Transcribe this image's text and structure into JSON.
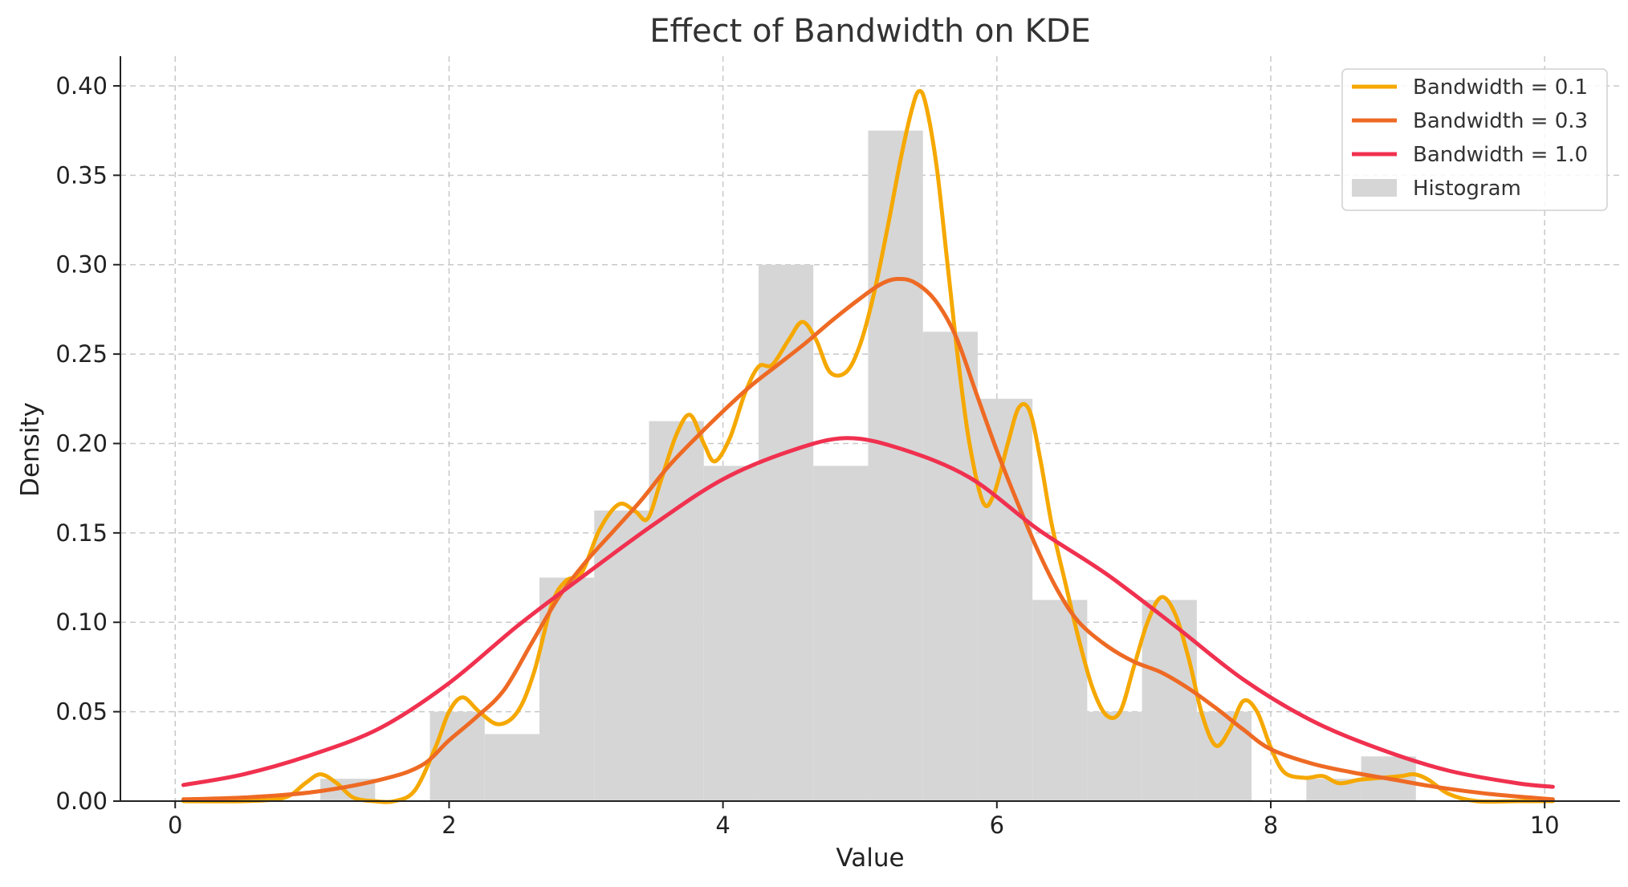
{
  "chart_data": {
    "type": "area",
    "title": "Effect of Bandwidth on KDE",
    "xlabel": "Value",
    "ylabel": "Density",
    "xlim": [
      -0.4,
      10.55
    ],
    "ylim": [
      0,
      0.4166
    ],
    "grid": true,
    "legend_position": "top-right",
    "x_ticks": [
      {
        "value": 0,
        "label": "0"
      },
      {
        "value": 2,
        "label": "2"
      },
      {
        "value": 4,
        "label": "4"
      },
      {
        "value": 6,
        "label": "6"
      },
      {
        "value": 8,
        "label": "8"
      },
      {
        "value": 10,
        "label": "10"
      }
    ],
    "y_ticks": [
      {
        "value": 0,
        "label": "0.00"
      },
      {
        "value": 0.05,
        "label": "0.05"
      },
      {
        "value": 0.1,
        "label": "0.10"
      },
      {
        "value": 0.15,
        "label": "0.15"
      },
      {
        "value": 0.2,
        "label": "0.20"
      },
      {
        "value": 0.25,
        "label": "0.25"
      },
      {
        "value": 0.3,
        "label": "0.30"
      },
      {
        "value": 0.35,
        "label": "0.35"
      },
      {
        "value": 0.4,
        "label": "0.40"
      }
    ],
    "histogram": {
      "name": "Histogram",
      "color": "#d6d6d6",
      "bins": [
        {
          "x0": 1.06,
          "x1": 1.46,
          "density": 0.0125
        },
        {
          "x0": 1.46,
          "x1": 1.86,
          "density": 0.0
        },
        {
          "x0": 1.86,
          "x1": 2.26,
          "density": 0.05
        },
        {
          "x0": 2.26,
          "x1": 2.66,
          "density": 0.0375
        },
        {
          "x0": 2.66,
          "x1": 3.06,
          "density": 0.125
        },
        {
          "x0": 3.06,
          "x1": 3.46,
          "density": 0.1625
        },
        {
          "x0": 3.46,
          "x1": 3.86,
          "density": 0.2125
        },
        {
          "x0": 3.86,
          "x1": 4.26,
          "density": 0.1875
        },
        {
          "x0": 4.26,
          "x1": 4.66,
          "density": 0.3
        },
        {
          "x0": 4.66,
          "x1": 5.06,
          "density": 0.1875
        },
        {
          "x0": 5.06,
          "x1": 5.46,
          "density": 0.375
        },
        {
          "x0": 5.46,
          "x1": 5.86,
          "density": 0.2625
        },
        {
          "x0": 5.86,
          "x1": 6.26,
          "density": 0.225
        },
        {
          "x0": 6.26,
          "x1": 6.66,
          "density": 0.1125
        },
        {
          "x0": 6.66,
          "x1": 7.06,
          "density": 0.05
        },
        {
          "x0": 7.06,
          "x1": 7.46,
          "density": 0.1125
        },
        {
          "x0": 7.46,
          "x1": 7.86,
          "density": 0.05
        },
        {
          "x0": 7.86,
          "x1": 8.26,
          "density": 0.0
        },
        {
          "x0": 8.26,
          "x1": 8.66,
          "density": 0.0125
        },
        {
          "x0": 8.66,
          "x1": 9.06,
          "density": 0.025
        }
      ]
    },
    "series": [
      {
        "name": "Bandwidth = 0.1",
        "color": "#f5a800",
        "points": [
          [
            0.06,
            0.0
          ],
          [
            0.5,
            0.0
          ],
          [
            0.8,
            0.002
          ],
          [
            0.95,
            0.01
          ],
          [
            1.06,
            0.015
          ],
          [
            1.18,
            0.01
          ],
          [
            1.3,
            0.002
          ],
          [
            1.45,
            0.0
          ],
          [
            1.6,
            0.0
          ],
          [
            1.75,
            0.006
          ],
          [
            1.9,
            0.03
          ],
          [
            2.0,
            0.05
          ],
          [
            2.1,
            0.058
          ],
          [
            2.22,
            0.05
          ],
          [
            2.36,
            0.043
          ],
          [
            2.5,
            0.05
          ],
          [
            2.62,
            0.072
          ],
          [
            2.75,
            0.11
          ],
          [
            2.85,
            0.123
          ],
          [
            2.97,
            0.128
          ],
          [
            3.1,
            0.152
          ],
          [
            3.24,
            0.166
          ],
          [
            3.36,
            0.162
          ],
          [
            3.45,
            0.158
          ],
          [
            3.55,
            0.18
          ],
          [
            3.66,
            0.205
          ],
          [
            3.76,
            0.216
          ],
          [
            3.86,
            0.2
          ],
          [
            3.94,
            0.19
          ],
          [
            4.05,
            0.203
          ],
          [
            4.16,
            0.228
          ],
          [
            4.26,
            0.243
          ],
          [
            4.36,
            0.244
          ],
          [
            4.48,
            0.258
          ],
          [
            4.58,
            0.268
          ],
          [
            4.68,
            0.258
          ],
          [
            4.78,
            0.24
          ],
          [
            4.9,
            0.24
          ],
          [
            5.0,
            0.255
          ],
          [
            5.1,
            0.283
          ],
          [
            5.2,
            0.32
          ],
          [
            5.3,
            0.36
          ],
          [
            5.38,
            0.387
          ],
          [
            5.43,
            0.397
          ],
          [
            5.48,
            0.39
          ],
          [
            5.56,
            0.355
          ],
          [
            5.64,
            0.3
          ],
          [
            5.72,
            0.245
          ],
          [
            5.8,
            0.2
          ],
          [
            5.9,
            0.167
          ],
          [
            5.98,
            0.172
          ],
          [
            6.08,
            0.2
          ],
          [
            6.16,
            0.22
          ],
          [
            6.24,
            0.218
          ],
          [
            6.32,
            0.19
          ],
          [
            6.4,
            0.155
          ],
          [
            6.5,
            0.122
          ],
          [
            6.6,
            0.09
          ],
          [
            6.7,
            0.063
          ],
          [
            6.8,
            0.048
          ],
          [
            6.9,
            0.05
          ],
          [
            7.0,
            0.075
          ],
          [
            7.1,
            0.1
          ],
          [
            7.2,
            0.114
          ],
          [
            7.3,
            0.105
          ],
          [
            7.4,
            0.08
          ],
          [
            7.5,
            0.048
          ],
          [
            7.6,
            0.031
          ],
          [
            7.7,
            0.04
          ],
          [
            7.8,
            0.056
          ],
          [
            7.9,
            0.05
          ],
          [
            8.0,
            0.03
          ],
          [
            8.1,
            0.016
          ],
          [
            8.25,
            0.013
          ],
          [
            8.38,
            0.014
          ],
          [
            8.5,
            0.01
          ],
          [
            8.65,
            0.012
          ],
          [
            8.8,
            0.013
          ],
          [
            8.95,
            0.014
          ],
          [
            9.05,
            0.015
          ],
          [
            9.15,
            0.012
          ],
          [
            9.3,
            0.004
          ],
          [
            9.5,
            0.0
          ],
          [
            9.8,
            0.0
          ],
          [
            10.06,
            0.0
          ]
        ]
      },
      {
        "name": "Bandwidth = 0.3",
        "color": "#ee6a24",
        "points": [
          [
            0.06,
            0.001
          ],
          [
            0.5,
            0.002
          ],
          [
            1.0,
            0.005
          ],
          [
            1.5,
            0.012
          ],
          [
            1.8,
            0.02
          ],
          [
            2.0,
            0.034
          ],
          [
            2.2,
            0.047
          ],
          [
            2.4,
            0.062
          ],
          [
            2.6,
            0.088
          ],
          [
            2.8,
            0.114
          ],
          [
            3.0,
            0.134
          ],
          [
            3.2,
            0.151
          ],
          [
            3.4,
            0.168
          ],
          [
            3.6,
            0.187
          ],
          [
            3.8,
            0.203
          ],
          [
            4.0,
            0.218
          ],
          [
            4.2,
            0.232
          ],
          [
            4.4,
            0.244
          ],
          [
            4.6,
            0.256
          ],
          [
            4.8,
            0.269
          ],
          [
            5.0,
            0.281
          ],
          [
            5.15,
            0.289
          ],
          [
            5.27,
            0.292
          ],
          [
            5.4,
            0.29
          ],
          [
            5.55,
            0.28
          ],
          [
            5.7,
            0.26
          ],
          [
            5.85,
            0.228
          ],
          [
            6.0,
            0.196
          ],
          [
            6.15,
            0.167
          ],
          [
            6.3,
            0.14
          ],
          [
            6.45,
            0.117
          ],
          [
            6.6,
            0.1
          ],
          [
            6.8,
            0.087
          ],
          [
            7.0,
            0.078
          ],
          [
            7.2,
            0.072
          ],
          [
            7.4,
            0.063
          ],
          [
            7.6,
            0.052
          ],
          [
            7.8,
            0.04
          ],
          [
            8.0,
            0.029
          ],
          [
            8.3,
            0.021
          ],
          [
            8.6,
            0.016
          ],
          [
            8.9,
            0.012
          ],
          [
            9.2,
            0.008
          ],
          [
            9.6,
            0.004
          ],
          [
            10.06,
            0.001
          ]
        ]
      },
      {
        "name": "Bandwidth = 1.0",
        "color": "#f0314f",
        "points": [
          [
            0.06,
            0.009
          ],
          [
            0.5,
            0.015
          ],
          [
            1.0,
            0.026
          ],
          [
            1.5,
            0.041
          ],
          [
            2.0,
            0.066
          ],
          [
            2.5,
            0.098
          ],
          [
            3.0,
            0.127
          ],
          [
            3.5,
            0.155
          ],
          [
            4.0,
            0.18
          ],
          [
            4.5,
            0.196
          ],
          [
            4.9,
            0.203
          ],
          [
            5.3,
            0.197
          ],
          [
            5.8,
            0.181
          ],
          [
            6.3,
            0.152
          ],
          [
            6.8,
            0.127
          ],
          [
            7.3,
            0.098
          ],
          [
            7.8,
            0.068
          ],
          [
            8.3,
            0.045
          ],
          [
            8.8,
            0.029
          ],
          [
            9.3,
            0.017
          ],
          [
            9.8,
            0.01
          ],
          [
            10.06,
            0.008
          ]
        ]
      }
    ]
  }
}
